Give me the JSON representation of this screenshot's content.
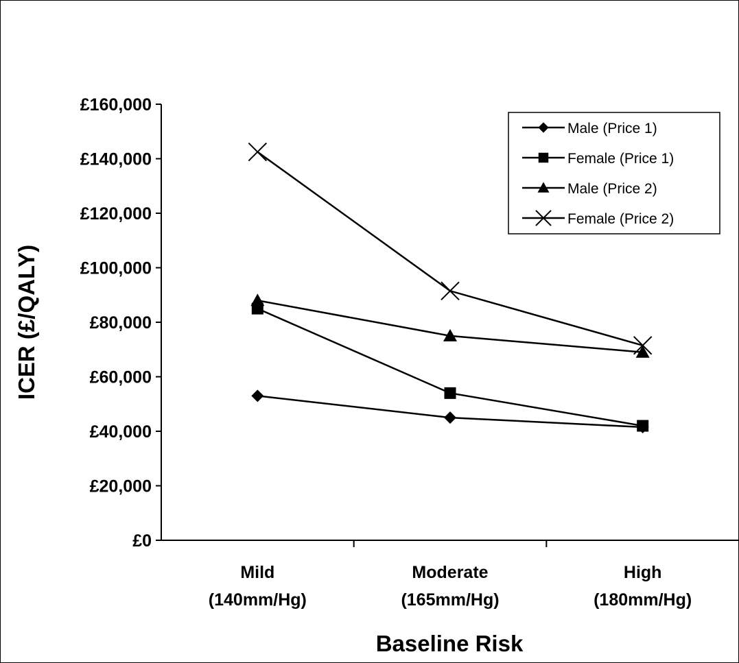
{
  "chart_data": {
    "type": "line",
    "title": "",
    "xlabel": "Baseline Risk",
    "ylabel": "ICER (£/QALY)",
    "ylim": [
      0,
      160000
    ],
    "ytick_values": [
      0,
      20000,
      40000,
      60000,
      80000,
      100000,
      120000,
      140000,
      160000
    ],
    "ytick_labels": [
      "£0",
      "£20,000",
      "£40,000",
      "£60,000",
      "£80,000",
      "£100,000",
      "£120,000",
      "£140,000",
      "£160,000"
    ],
    "categories": [
      {
        "line1": "Mild",
        "line2": "(140mm/Hg)"
      },
      {
        "line1": "Moderate",
        "line2": "(165mm/Hg)"
      },
      {
        "line1": "High",
        "line2": "(180mm/Hg)"
      }
    ],
    "grid": false,
    "legend_position": "top-right",
    "series": [
      {
        "name": "Male (Price 1)",
        "marker": "diamond",
        "values": [
          53000,
          45000,
          41500
        ]
      },
      {
        "name": "Female (Price 1)",
        "marker": "square",
        "values": [
          85000,
          54000,
          42000
        ]
      },
      {
        "name": "Male (Price 2)",
        "marker": "triangle",
        "values": [
          88000,
          75000,
          69000
        ]
      },
      {
        "name": "Female (Price 2)",
        "marker": "x",
        "values": [
          142500,
          91500,
          71500
        ]
      }
    ],
    "line_color": "#000000"
  }
}
